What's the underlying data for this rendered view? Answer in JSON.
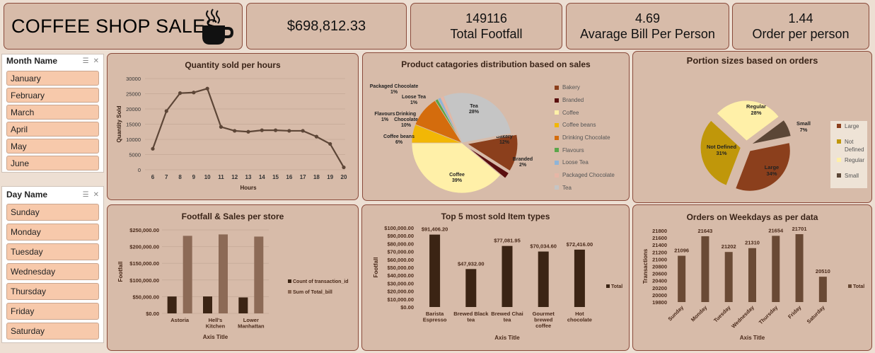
{
  "header": {
    "title": "COFFEE SHOP SALES",
    "icon": "coffee-cup-icon",
    "kpis": [
      {
        "value": "$698,812.33",
        "label": ""
      },
      {
        "value": "149116",
        "label": "Total Footfall"
      },
      {
        "value": "4.69",
        "label": "Avarage Bill Per Person"
      },
      {
        "value": "1.44",
        "label": "Order per person"
      }
    ]
  },
  "slicers": {
    "month": {
      "title": "Month Name",
      "items": [
        "January",
        "February",
        "March",
        "April",
        "May",
        "June"
      ]
    },
    "day": {
      "title": "Day Name",
      "items": [
        "Sunday",
        "Monday",
        "Tuesday",
        "Wednesday",
        "Thursday",
        "Friday",
        "Saturday"
      ]
    }
  },
  "colors": {
    "card_bg": "#d7bba9",
    "card_border": "#8a4a3a",
    "line": "#5d4637",
    "slicer_item": "#f7c9ab",
    "dark_bar": "#3b2414",
    "light_bar": "#8c6a56",
    "weekday_bar": "#6a4a35"
  },
  "chart_data": [
    {
      "type": "line",
      "title": "Quantity sold per hours",
      "xlabel": "Hours",
      "ylabel": "Quantity Sold",
      "x": [
        6,
        7,
        8,
        9,
        10,
        11,
        12,
        13,
        14,
        15,
        16,
        17,
        18,
        19,
        20
      ],
      "values": [
        6900,
        19300,
        25200,
        25400,
        26700,
        14100,
        12800,
        12500,
        13000,
        13000,
        12800,
        12800,
        10900,
        8500,
        800
      ],
      "ylim": [
        0,
        30000
      ],
      "yticks": [
        "0",
        "5000",
        "10000",
        "15000",
        "20000",
        "25000",
        "30000"
      ],
      "grid": true
    },
    {
      "type": "pie",
      "title": "Product catagories distribution based on sales",
      "slices": [
        {
          "name": "Bakery",
          "value": 12,
          "label": "12%",
          "color": "#8b3f1c"
        },
        {
          "name": "Branded",
          "value": 2,
          "label": "2%",
          "color": "#5a0f0f"
        },
        {
          "name": "Coffee",
          "value": 39,
          "label": "39%",
          "color": "#fff0a8"
        },
        {
          "name": "Coffee beans",
          "value": 6,
          "label": "6%",
          "color": "#f2b705"
        },
        {
          "name": "Drinking Chocolate",
          "value": 10,
          "label": "10%",
          "color": "#d46c0d"
        },
        {
          "name": "Flavours",
          "value": 1,
          "label": "1%",
          "color": "#5aa64a"
        },
        {
          "name": "Loose Tea",
          "value": 1,
          "label": "1%",
          "color": "#8fb4d8"
        },
        {
          "name": "Packaged Chocolate",
          "value": 1,
          "label": "1%",
          "color": "#e7b6a6"
        },
        {
          "name": "Tea",
          "value": 28,
          "label": "28%",
          "color": "#c5c5c5"
        }
      ],
      "legend": "right"
    },
    {
      "type": "pie",
      "title": "Portion sizes based on orders",
      "slices": [
        {
          "name": "Large",
          "value": 34,
          "label": "34%",
          "color": "#8b3f1c"
        },
        {
          "name": "Not Defined",
          "value": 31,
          "label": "31%",
          "color": "#c0970a"
        },
        {
          "name": "Regular",
          "value": 28,
          "label": "28%",
          "color": "#fff0a8"
        },
        {
          "name": "Small",
          "value": 7,
          "label": "7%",
          "color": "#5b4636"
        }
      ],
      "legend": "right"
    },
    {
      "type": "bar",
      "title": "Footfall  & Sales per store",
      "xlabel": "Axis Title",
      "ylabel": "Footfall",
      "categories": [
        "Astoria",
        "Hell's Kitchen",
        "Lower Manhattan"
      ],
      "series": [
        {
          "name": "Count of transaction_id",
          "values": [
            50599,
            50735,
            47782
          ]
        },
        {
          "name": "Sum of Total_bill",
          "values": [
            232243.91,
            236511.17,
            230057.25
          ]
        }
      ],
      "ylim": [
        0,
        250000
      ],
      "yticks": [
        "$0.00",
        "$50,000.00",
        "$100,000.00",
        "$150,000.00",
        "$200,000.00",
        "$250,000.00"
      ],
      "legend": "right"
    },
    {
      "type": "bar",
      "title": "Top 5 most sold Item types",
      "xlabel": "Axis Title",
      "ylabel": "Footfall",
      "categories": [
        "Barista Espresso",
        "Brewed Black tea",
        "Brewed Chai tea",
        "Gourmet brewed coffee",
        "Hot chocolate"
      ],
      "series": [
        {
          "name": "Total",
          "values": [
            91406.2,
            47932.0,
            77081.95,
            70034.6,
            72416.0
          ],
          "labels": [
            "$91,406.20",
            "$47,932.00",
            "$77,081.95",
            "$70,034.60",
            "$72,416.00"
          ]
        }
      ],
      "ylim": [
        0,
        100000
      ],
      "yticks": [
        "$0.00",
        "$10,000.00",
        "$20,000.00",
        "$30,000.00",
        "$40,000.00",
        "$50,000.00",
        "$60,000.00",
        "$70,000.00",
        "$80,000.00",
        "$90,000.00",
        "$100,000.00"
      ],
      "legend": "right"
    },
    {
      "type": "bar",
      "title": "Orders on Weekdays as per data",
      "xlabel": "Axis Title",
      "ylabel": "Transactions",
      "categories": [
        "Sunday",
        "Monday",
        "Tuesday",
        "Wednesday",
        "Thursday",
        "Friday",
        "Saturday"
      ],
      "series": [
        {
          "name": "Total",
          "values": [
            21096,
            21643,
            21202,
            21310,
            21654,
            21701,
            20510
          ]
        }
      ],
      "ylim": [
        19800,
        21800
      ],
      "yticks": [
        "19800",
        "20000",
        "20200",
        "20400",
        "20600",
        "20800",
        "21000",
        "21200",
        "21400",
        "21600",
        "21800"
      ],
      "legend": "right"
    }
  ]
}
